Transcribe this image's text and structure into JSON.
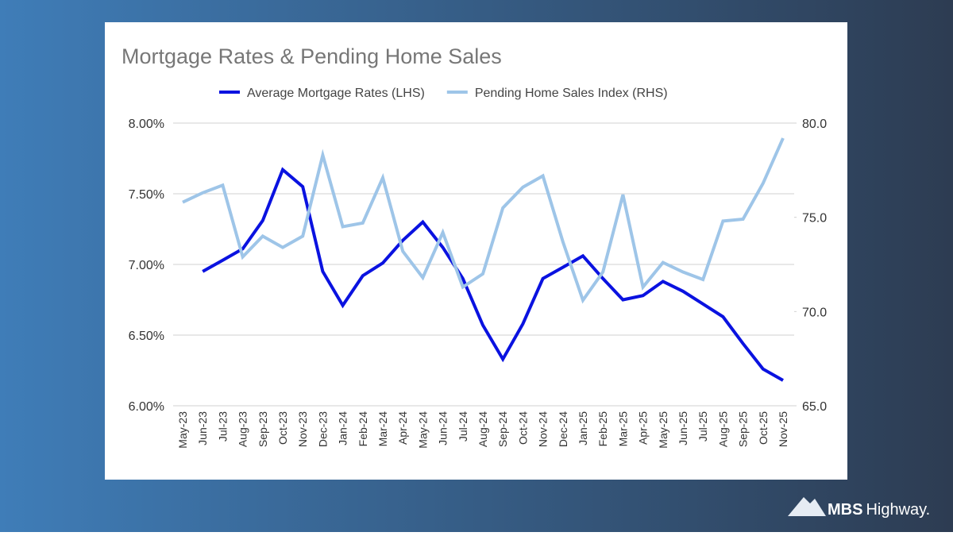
{
  "chart_data": {
    "type": "line",
    "title": "Mortgage Rates & Pending Home Sales",
    "categories": [
      "May-23",
      "Jun-23",
      "Jul-23",
      "Aug-23",
      "Sep-23",
      "Oct-23",
      "Nov-23",
      "Dec-23",
      "Jan-24",
      "Feb-24",
      "Mar-24",
      "Apr-24",
      "May-24",
      "Jun-24",
      "Jul-24",
      "Aug-24",
      "Sep-24",
      "Oct-24",
      "Nov-24",
      "Dec-24",
      "Jan-25",
      "Feb-25",
      "Mar-25",
      "Apr-25",
      "May-25",
      "Jun-25",
      "Jul-25",
      "Aug-25",
      "Sep-25",
      "Oct-25",
      "Nov-25"
    ],
    "series": [
      {
        "name": "Average Mortgage Rates (LHS)",
        "color": "#0a12e0",
        "values": [
          null,
          6.95,
          7.03,
          7.11,
          7.31,
          7.67,
          7.55,
          6.95,
          6.71,
          6.92,
          7.01,
          7.17,
          7.3,
          7.12,
          6.9,
          6.57,
          6.33,
          6.58,
          6.9,
          6.98,
          7.06,
          6.9,
          6.75,
          6.78,
          6.88,
          6.81,
          6.72,
          6.63,
          6.44,
          6.26,
          6.18
        ]
      },
      {
        "name": "Pending Home Sales Index (RHS)",
        "color": "#9ec5e8",
        "axis": "y2",
        "values": [
          75.8,
          76.3,
          76.7,
          72.9,
          74.0,
          73.4,
          74.0,
          78.3,
          74.5,
          74.7,
          77.1,
          73.2,
          71.8,
          74.2,
          71.3,
          72.0,
          75.5,
          76.6,
          77.2,
          73.7,
          70.6,
          72.1,
          76.2,
          71.3,
          72.6,
          72.1,
          71.7,
          74.8,
          74.9,
          76.8,
          79.2
        ]
      }
    ],
    "ylim": [
      6,
      8
    ],
    "yticks": [
      {
        "value": 6,
        "label": "6.00%"
      },
      {
        "value": 6.5,
        "label": "6.50%"
      },
      {
        "value": 7,
        "label": "7.00%"
      },
      {
        "value": 7.5,
        "label": "7.50%"
      },
      {
        "value": 8,
        "label": "8.00%"
      }
    ],
    "y2lim": [
      65,
      80
    ],
    "y2ticks": [
      {
        "value": 65,
        "label": "65.0"
      },
      {
        "value": 70,
        "label": "70.0"
      },
      {
        "value": 75,
        "label": "75.0"
      },
      {
        "value": 80,
        "label": "80.0"
      }
    ],
    "grid": true,
    "legend": "top"
  },
  "brand": {
    "name": "MBS",
    "suffix": "Highway."
  }
}
